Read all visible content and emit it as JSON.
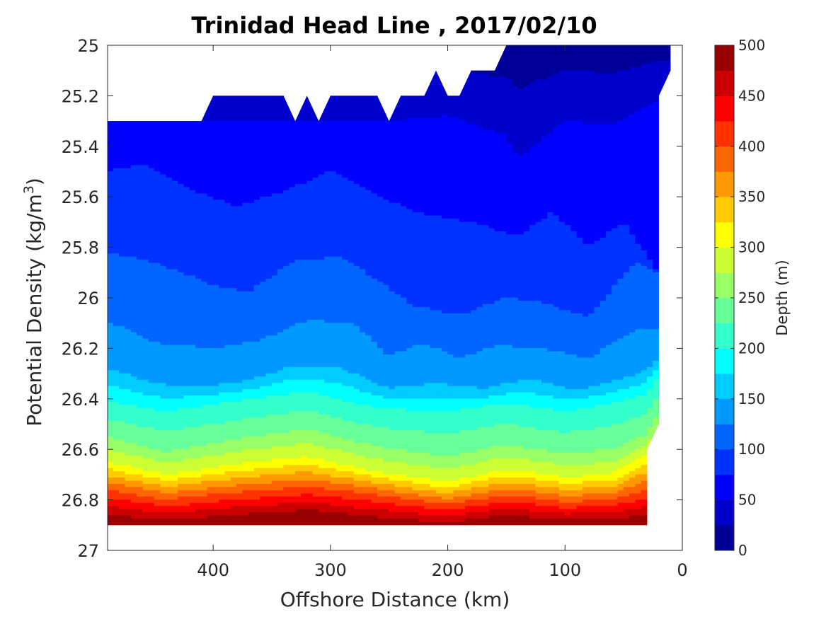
{
  "chart_data": {
    "type": "contour",
    "title": "Trinidad Head Line , 2017/02/10",
    "xlabel": "Offshore Distance (km)",
    "ylabel_main": "Potential Density (kg/m",
    "ylabel_sup": "3",
    "ylabel_close": ")",
    "colorbar_label": "Depth (m)",
    "x_reversed": true,
    "y_reversed": true,
    "xlim": [
      0,
      490
    ],
    "ylim": [
      25,
      27
    ],
    "x_ticks": [
      400,
      300,
      200,
      100,
      0
    ],
    "x_tick_labels": [
      "400",
      "300",
      "200",
      "100",
      "0"
    ],
    "y_ticks": [
      25,
      25.2,
      25.4,
      25.6,
      25.8,
      26,
      26.2,
      26.4,
      26.6,
      26.8,
      27
    ],
    "y_tick_labels": [
      "25",
      "25.2",
      "25.4",
      "25.6",
      "25.8",
      "26",
      "26.2",
      "26.4",
      "26.6",
      "26.8",
      "27"
    ],
    "clim": [
      0,
      500
    ],
    "level_step": 25,
    "colorbar_ticks": [
      "0",
      "50",
      "100",
      "150",
      "200",
      "250",
      "300",
      "350",
      "400",
      "450",
      "500"
    ],
    "colorbar_tick_values": [
      0,
      50,
      100,
      150,
      200,
      250,
      300,
      350,
      400,
      450,
      500
    ],
    "colormap": "jet",
    "data_extent": {
      "bottom_density": 26.9,
      "top_boundary": [
        [
          490,
          25.3
        ],
        [
          410,
          25.3
        ],
        [
          400,
          25.2
        ],
        [
          340,
          25.2
        ],
        [
          330,
          25.3
        ],
        [
          320,
          25.2
        ],
        [
          310,
          25.3
        ],
        [
          300,
          25.2
        ],
        [
          260,
          25.2
        ],
        [
          250,
          25.3
        ],
        [
          240,
          25.2
        ],
        [
          220,
          25.2
        ],
        [
          210,
          25.1
        ],
        [
          200,
          25.2
        ],
        [
          190,
          25.2
        ],
        [
          180,
          25.1
        ],
        [
          160,
          25.1
        ],
        [
          150,
          25.0
        ],
        [
          10,
          25.0
        ],
        [
          10,
          25.1
        ],
        [
          20,
          25.2
        ],
        [
          20,
          26.5
        ],
        [
          30,
          26.6
        ],
        [
          30,
          26.9
        ]
      ]
    },
    "depth_contours": [
      {
        "depth": 50,
        "x": [
          490,
          450,
          400,
          350,
          300,
          250,
          200,
          150,
          140,
          100,
          60,
          20
        ],
        "y": [
          25.3,
          25.3,
          25.3,
          25.3,
          25.3,
          25.3,
          25.28,
          25.36,
          25.45,
          25.3,
          25.32,
          25.22
        ]
      },
      {
        "depth": 75,
        "x": [
          490,
          460,
          420,
          380,
          340,
          300,
          260,
          230,
          180,
          140,
          110,
          80,
          50,
          20
        ],
        "y": [
          25.5,
          25.47,
          25.57,
          25.64,
          25.58,
          25.5,
          25.59,
          25.66,
          25.7,
          25.76,
          25.66,
          25.8,
          25.7,
          25.9
        ]
      },
      {
        "depth": 100,
        "x": [
          490,
          450,
          400,
          370,
          330,
          290,
          260,
          230,
          190,
          150,
          120,
          80,
          40,
          20
        ],
        "y": [
          25.82,
          25.86,
          25.95,
          25.98,
          25.85,
          25.84,
          25.93,
          26.03,
          26.07,
          26.0,
          26.02,
          26.08,
          25.86,
          25.9
        ]
      },
      {
        "depth": 125,
        "x": [
          490,
          450,
          400,
          360,
          320,
          280,
          250,
          220,
          190,
          160,
          120,
          80,
          40,
          20
        ],
        "y": [
          26.09,
          26.18,
          26.2,
          26.17,
          26.09,
          26.1,
          26.23,
          26.18,
          26.24,
          26.19,
          26.2,
          26.24,
          26.13,
          26.12
        ]
      },
      {
        "depth": 150,
        "x": [
          490,
          450,
          420,
          380,
          330,
          290,
          250,
          210,
          170,
          130,
          90,
          60,
          30,
          20
        ],
        "y": [
          26.28,
          26.34,
          26.35,
          26.34,
          26.27,
          26.28,
          26.36,
          26.34,
          26.36,
          26.32,
          26.37,
          26.33,
          26.29,
          26.23
        ]
      },
      {
        "depth": 200,
        "x": [
          490,
          440,
          380,
          320,
          260,
          200,
          150,
          100,
          60,
          30,
          20
        ],
        "y": [
          26.41,
          26.45,
          26.41,
          26.37,
          26.44,
          26.45,
          26.42,
          26.45,
          26.42,
          26.38,
          26.3
        ]
      },
      {
        "depth": 250,
        "x": [
          490,
          440,
          380,
          320,
          260,
          200,
          150,
          100,
          60,
          30,
          20
        ],
        "y": [
          26.55,
          26.61,
          26.56,
          26.52,
          26.59,
          26.63,
          26.58,
          26.62,
          26.6,
          26.54,
          26.45
        ]
      },
      {
        "depth": 300,
        "x": [
          490,
          440,
          380,
          320,
          260,
          200,
          150,
          100,
          60,
          30
        ],
        "y": [
          26.65,
          26.7,
          26.66,
          26.63,
          26.69,
          26.73,
          26.68,
          26.71,
          26.7,
          26.62
        ]
      },
      {
        "depth": 400,
        "x": [
          490,
          440,
          380,
          320,
          260,
          200,
          150,
          100,
          60,
          30
        ],
        "y": [
          26.76,
          26.8,
          26.77,
          26.75,
          26.78,
          26.82,
          26.78,
          26.81,
          26.8,
          26.76
        ]
      },
      {
        "depth": 475,
        "x": [
          490,
          440,
          380,
          320,
          260,
          200,
          150,
          100,
          60,
          30
        ],
        "y": [
          26.86,
          26.88,
          26.86,
          26.84,
          26.87,
          26.89,
          26.86,
          26.88,
          26.88,
          26.86
        ]
      }
    ]
  }
}
